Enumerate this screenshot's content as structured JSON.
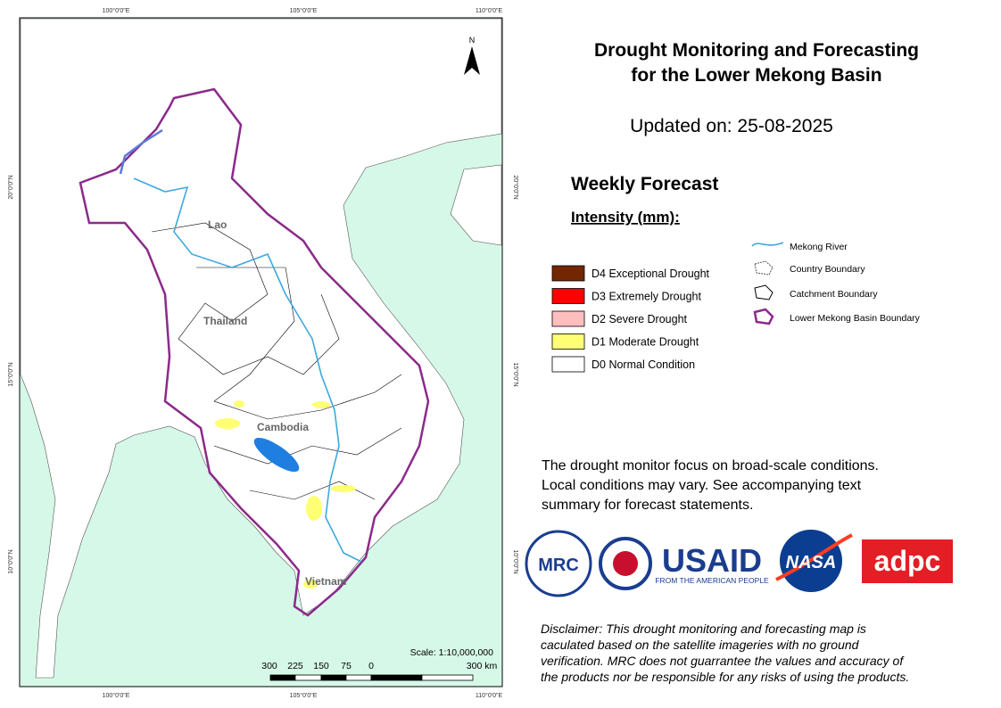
{
  "map": {
    "north": "N",
    "lon_labels": [
      "100°0'0\"E",
      "105°0'0\"E",
      "110°0'0\"E"
    ],
    "lat_labels": [
      "20°0'0\"N",
      "15°0'0\"N",
      "10°0'0\"N"
    ],
    "country_labels": [
      "Lao",
      "Thailand",
      "Cambodia",
      "Vietnam"
    ],
    "scale": "Scale: 1:10,000,000",
    "scale_bar": [
      "300",
      "225",
      "150",
      "75",
      "0",
      "300 km"
    ]
  },
  "header": {
    "title": [
      "Drought Monitoring and Forecasting",
      "for the Lower Mekong Basin"
    ],
    "updated": "Updated on: 25-08-2025",
    "section": "Weekly Forecast",
    "intensity": "Intensity (mm):"
  },
  "legend": {
    "classes": [
      {
        "label": "D4 Exceptional Drought",
        "color": "#732600"
      },
      {
        "label": "D3 Extremely Drought",
        "color": "#ff0000"
      },
      {
        "label": "D2 Severe Drought",
        "color": "#ffbebe"
      },
      {
        "label": "D1 Moderate Drought",
        "color": "#ffff73"
      },
      {
        "label": "D0 Normal Condition",
        "color": "#ffffff"
      }
    ],
    "lines": [
      "Mekong River",
      "Country Boundary",
      "Catchment Boundary",
      "Lower Mekong Basin Boundary"
    ]
  },
  "note": [
    "The drought monitor focus on broad-scale conditions.",
    "Local conditions may vary. See accompanying text",
    "summary for forecast statements."
  ],
  "logos": {
    "mrc": "MRC",
    "usaid": "USAID",
    "usaid_tagline": "FROM THE AMERICAN PEOPLE",
    "nasa": "NASA",
    "adpc": "adpc"
  },
  "disclaimer": [
    "Disclaimer: This drought monitoring and forecasting map is",
    "caculated based on the satellite imageries with no ground",
    "verification. MRC does not guarrantee the values and accuracy of",
    "the products nor be responsible for any risks of using the products."
  ]
}
